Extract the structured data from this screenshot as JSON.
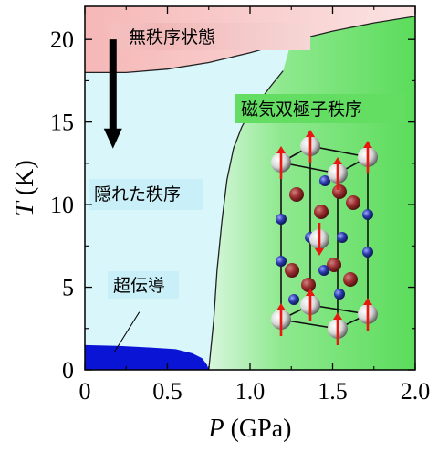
{
  "chart_data": {
    "type": "area",
    "title": "",
    "xlabel": {
      "symbol": "P",
      "unit": "(GPa)"
    },
    "ylabel": {
      "symbol": "T",
      "unit": "(K)"
    },
    "xlim": [
      0,
      2.0
    ],
    "ylim": [
      0,
      22
    ],
    "xticks": [
      "0",
      "0.5",
      "1.0",
      "1.5",
      "2.0"
    ],
    "xtick_values": [
      0,
      0.5,
      1.0,
      1.5,
      2.0
    ],
    "yticks": [
      "0",
      "5",
      "10",
      "15",
      "20"
    ],
    "ytick_values": [
      0,
      5,
      10,
      15,
      20
    ],
    "grid": false,
    "boundaries": [
      {
        "name": "disordered-boundary",
        "x": [
          0,
          0.25,
          0.5,
          0.75,
          1.0,
          1.25,
          1.5,
          1.75,
          2.0
        ],
        "y": [
          18.0,
          18.0,
          18.2,
          18.6,
          19.2,
          19.9,
          20.5,
          21.0,
          21.4
        ]
      },
      {
        "name": "dipole-boundary",
        "x": [
          0.75,
          0.78,
          0.8,
          0.83,
          0.86,
          0.9,
          0.95,
          1.0,
          1.06,
          1.12,
          1.2
        ],
        "y": [
          0,
          3.0,
          6.0,
          9.0,
          11.5,
          13.4,
          14.7,
          15.6,
          16.3,
          17.1,
          18.1
        ]
      },
      {
        "name": "superconducting-boundary",
        "x": [
          0,
          0.2,
          0.4,
          0.55,
          0.65,
          0.71,
          0.74,
          0.75
        ],
        "y": [
          1.5,
          1.45,
          1.35,
          1.25,
          1.0,
          0.7,
          0.3,
          0
        ]
      }
    ],
    "regions": [
      {
        "label": "無秩序状態",
        "color": "#f8c4c4"
      },
      {
        "label": "磁気双極子秩序",
        "color": "#5bdc5b"
      },
      {
        "label": "隠れた秩序",
        "color": "#d9f6fa"
      },
      {
        "label": "超伝導",
        "color": "#0a14d4"
      }
    ],
    "arrow": {
      "from": [
        0.17,
        20
      ],
      "to": [
        0.17,
        13.5
      ]
    },
    "pointer_line": {
      "from": [
        0.33,
        3.5
      ],
      "to": [
        0.18,
        1.1
      ]
    }
  },
  "colors": {
    "disordered": "#f8c4c4",
    "hidden": "#d9f6fa",
    "dipole_dark": "#5bdc5b",
    "superconducting": "#0a14d4",
    "spin_arrow": "#e8170f",
    "sphere_red": "#9a2d2d",
    "sphere_blue": "#2a3aa8"
  },
  "inset": {
    "icon": "crystal-lattice-icon",
    "spins": [
      "up",
      "up",
      "up",
      "up",
      "up",
      "up",
      "up",
      "down"
    ]
  }
}
